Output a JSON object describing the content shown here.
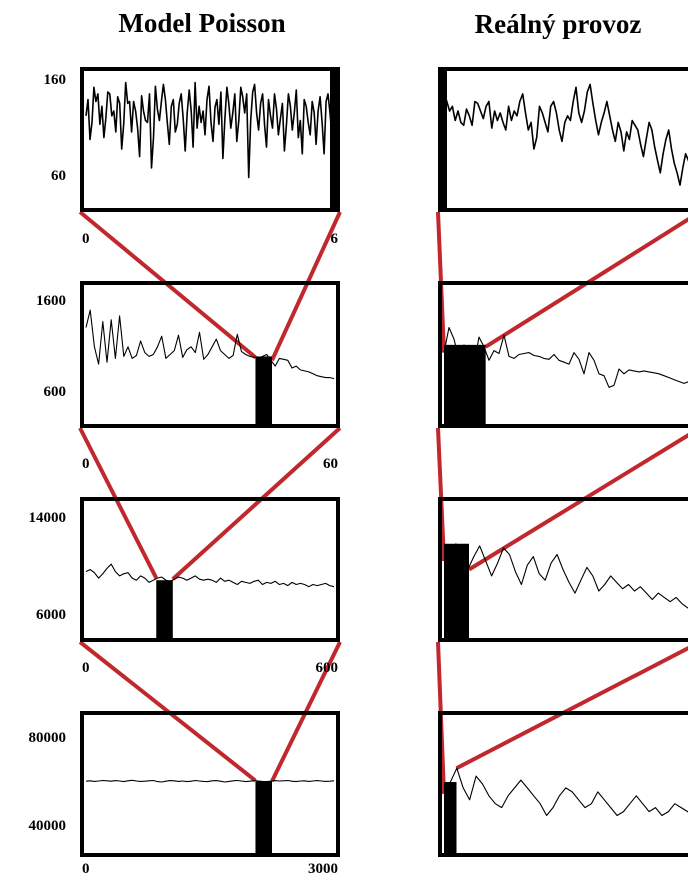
{
  "columns": [
    {
      "title": "Model Poisson"
    },
    {
      "title": "Reálný provoz"
    }
  ],
  "colors": {
    "zoom_line": "#c0282d",
    "frame": "#000000",
    "series": "#000000"
  },
  "chart_data": [
    {
      "type": "line",
      "column": 0,
      "row": 0,
      "title": "",
      "xlabel": "",
      "ylabel": "",
      "x_tick_labels": [
        "0",
        "6"
      ],
      "y_tick_labels": [
        "160",
        "60"
      ],
      "xlim": [
        0,
        6
      ],
      "ylim": [
        40,
        180
      ],
      "y": [
        135,
        152,
        110,
        128,
        165,
        150,
        158,
        126,
        145,
        112,
        132,
        160,
        158,
        135,
        140,
        118,
        155,
        148,
        100,
        126,
        170,
        148,
        150,
        118,
        150,
        140,
        122,
        92,
        156,
        140,
        130,
        128,
        158,
        80,
        112,
        166,
        142,
        130,
        150,
        168,
        152,
        128,
        105,
        145,
        152,
        118,
        126,
        148,
        158,
        132,
        98,
        138,
        162,
        140,
        102,
        170,
        122,
        145,
        128,
        140,
        115,
        152,
        166,
        128,
        108,
        144,
        152,
        126,
        160,
        90,
        132,
        165,
        148,
        122,
        138,
        158,
        108,
        130,
        165,
        155,
        138,
        158,
        70,
        130,
        160,
        168,
        138,
        120,
        148,
        158,
        125,
        102,
        152,
        135,
        122,
        158,
        142,
        115,
        132,
        148,
        98,
        125,
        158,
        145,
        120,
        138,
        162,
        112,
        130,
        95,
        152,
        145,
        128,
        115,
        150,
        138,
        105,
        140,
        155,
        128,
        95,
        150,
        158,
        138,
        112,
        148
      ]
    },
    {
      "type": "line",
      "column": 0,
      "row": 1,
      "title": "",
      "xlabel": "",
      "ylabel": "",
      "x_tick_labels": [
        "0",
        "60"
      ],
      "y_tick_labels": [
        "1600",
        "600"
      ],
      "xlim": [
        0,
        60
      ],
      "ylim": [
        400,
        1800
      ],
      "zoom_window": [
        41,
        45
      ],
      "y": [
        1380,
        1560,
        1180,
        1000,
        1440,
        1020,
        1460,
        1060,
        1500,
        1080,
        1180,
        1060,
        1090,
        1240,
        1120,
        1080,
        1100,
        1180,
        1290,
        1060,
        1100,
        1140,
        1300,
        1070,
        1150,
        1180,
        1120,
        1330,
        1050,
        1100,
        1180,
        1260,
        1140,
        1100,
        1060,
        1090,
        1310,
        1130,
        1100,
        1080,
        1070,
        1060,
        1080,
        1100,
        1040,
        980,
        1060,
        1050,
        1040,
        960,
        980,
        940,
        930,
        920,
        900,
        880,
        870,
        860,
        860,
        850
      ]
    },
    {
      "type": "line",
      "column": 0,
      "row": 2,
      "title": "",
      "xlabel": "",
      "ylabel": "",
      "x_tick_labels": [
        "0",
        "600"
      ],
      "y_tick_labels": [
        "14000",
        "6000"
      ],
      "xlim": [
        0,
        600
      ],
      "ylim": [
        4200,
        16600
      ],
      "zoom_window": [
        170,
        210
      ],
      "y": [
        10200,
        10400,
        10100,
        9600,
        10000,
        10500,
        10900,
        10200,
        9800,
        10000,
        10100,
        9600,
        9400,
        9800,
        9600,
        9200,
        9400,
        9600,
        9700,
        9400,
        9300,
        9500,
        9700,
        9600,
        9400,
        9600,
        9800,
        9500,
        9400,
        9500,
        9400,
        9200,
        9600,
        9300,
        9400,
        9200,
        9000,
        9300,
        9200,
        9100,
        9300,
        9400,
        9000,
        9200,
        9100,
        9300,
        9000,
        9100,
        8900,
        9200,
        9000,
        9100,
        9000,
        8800,
        9000,
        8900,
        9000,
        9100,
        8900,
        8800
      ]
    },
    {
      "type": "line",
      "column": 0,
      "row": 3,
      "title": "",
      "xlabel": "",
      "ylabel": "",
      "x_tick_labels": [
        "0",
        "3000"
      ],
      "y_tick_labels": [
        "80000",
        "40000"
      ],
      "xlim": [
        0,
        3000
      ],
      "ylim": [
        26000,
        94000
      ],
      "zoom_window": [
        2050,
        2250
      ],
      "y": [
        61400,
        61600,
        61300,
        61500,
        61800,
        61600,
        61400,
        61700,
        61500,
        61200,
        61600,
        61900,
        61500,
        61300,
        61400,
        61600,
        61800,
        61200,
        61000,
        61400,
        61700,
        61600,
        61300,
        61500,
        61200,
        61400,
        61800,
        61500,
        61300,
        61200,
        61600,
        61700,
        61400,
        61000,
        61300,
        61600,
        61800,
        61500,
        61200,
        61400,
        61700,
        61500,
        61300,
        61200,
        61400,
        61700,
        61500,
        61600,
        61800,
        61400,
        61200,
        61500,
        61600,
        61300,
        61500,
        61700,
        61500,
        61300,
        61400,
        61600
      ]
    },
    {
      "type": "line",
      "column": 1,
      "row": 0,
      "title": "",
      "xlabel": "",
      "ylabel": "",
      "x_tick_labels": [],
      "y_tick_labels": [],
      "xlim": [
        0,
        6
      ],
      "ylim": [
        40,
        180
      ],
      "y": [
        160,
        150,
        140,
        145,
        130,
        140,
        128,
        125,
        142,
        135,
        125,
        150,
        148,
        140,
        132,
        145,
        150,
        122,
        140,
        130,
        138,
        128,
        120,
        145,
        130,
        140,
        135,
        150,
        158,
        138,
        120,
        128,
        100,
        112,
        145,
        138,
        128,
        118,
        145,
        150,
        138,
        120,
        108,
        128,
        135,
        130,
        150,
        165,
        138,
        128,
        140,
        160,
        168,
        148,
        130,
        115,
        128,
        138,
        150,
        135,
        120,
        108,
        128,
        118,
        98,
        118,
        110,
        130,
        125,
        120,
        105,
        92,
        110,
        128,
        120,
        102,
        88,
        75,
        95,
        110,
        120,
        100,
        85,
        75,
        62,
        80,
        95,
        88,
        75,
        68
      ]
    },
    {
      "type": "line",
      "column": 1,
      "row": 1,
      "title": "",
      "xlabel": "",
      "ylabel": "",
      "x_tick_labels": [],
      "y_tick_labels": [],
      "xlim": [
        0,
        60
      ],
      "ylim": [
        400,
        1800
      ],
      "zoom_window": [
        0,
        10
      ],
      "y": [
        1120,
        1380,
        1260,
        1050,
        1200,
        1100,
        1000,
        1280,
        1180,
        1040,
        1140,
        1110,
        1300,
        1080,
        1060,
        1100,
        1110,
        1120,
        1090,
        1080,
        1060,
        1050,
        1100,
        1040,
        1020,
        1000,
        1120,
        1050,
        900,
        1120,
        1040,
        900,
        880,
        760,
        780,
        950,
        900,
        940,
        930,
        920,
        930,
        920,
        910,
        900,
        880,
        860,
        840,
        820,
        800,
        820,
        830
      ]
    },
    {
      "type": "line",
      "column": 1,
      "row": 2,
      "title": "",
      "xlabel": "",
      "ylabel": "",
      "x_tick_labels": [],
      "y_tick_labels": [],
      "xlim": [
        0,
        600
      ],
      "ylim": [
        4200,
        16600
      ],
      "zoom_window": [
        0,
        60
      ],
      "y": [
        11200,
        12000,
        12800,
        11400,
        10400,
        11600,
        12600,
        11200,
        9800,
        11000,
        12400,
        11800,
        10200,
        9000,
        10800,
        11600,
        10000,
        9400,
        11000,
        11800,
        10400,
        9200,
        8200,
        9400,
        10600,
        9800,
        8400,
        9000,
        9800,
        9200,
        8600,
        9000,
        8400,
        8800,
        8200,
        7600,
        8200,
        7800,
        7400,
        7800,
        7200,
        6800,
        7200
      ]
    },
    {
      "type": "line",
      "column": 1,
      "row": 3,
      "title": "",
      "xlabel": "",
      "ylabel": "",
      "x_tick_labels": [],
      "y_tick_labels": [],
      "xlim": [
        0,
        3000
      ],
      "ylim": [
        26000,
        94000
      ],
      "zoom_window": [
        0,
        150
      ],
      "y": [
        55000,
        61000,
        68000,
        58000,
        52000,
        64000,
        60000,
        54000,
        50000,
        48000,
        54000,
        58000,
        62000,
        58000,
        54000,
        50000,
        44000,
        48000,
        54000,
        58000,
        56000,
        52000,
        48000,
        50000,
        56000,
        52000,
        48000,
        44000,
        46000,
        50000,
        54000,
        50000,
        46000,
        48000,
        44000,
        46000,
        50000,
        48000,
        46000,
        44000
      ]
    }
  ]
}
